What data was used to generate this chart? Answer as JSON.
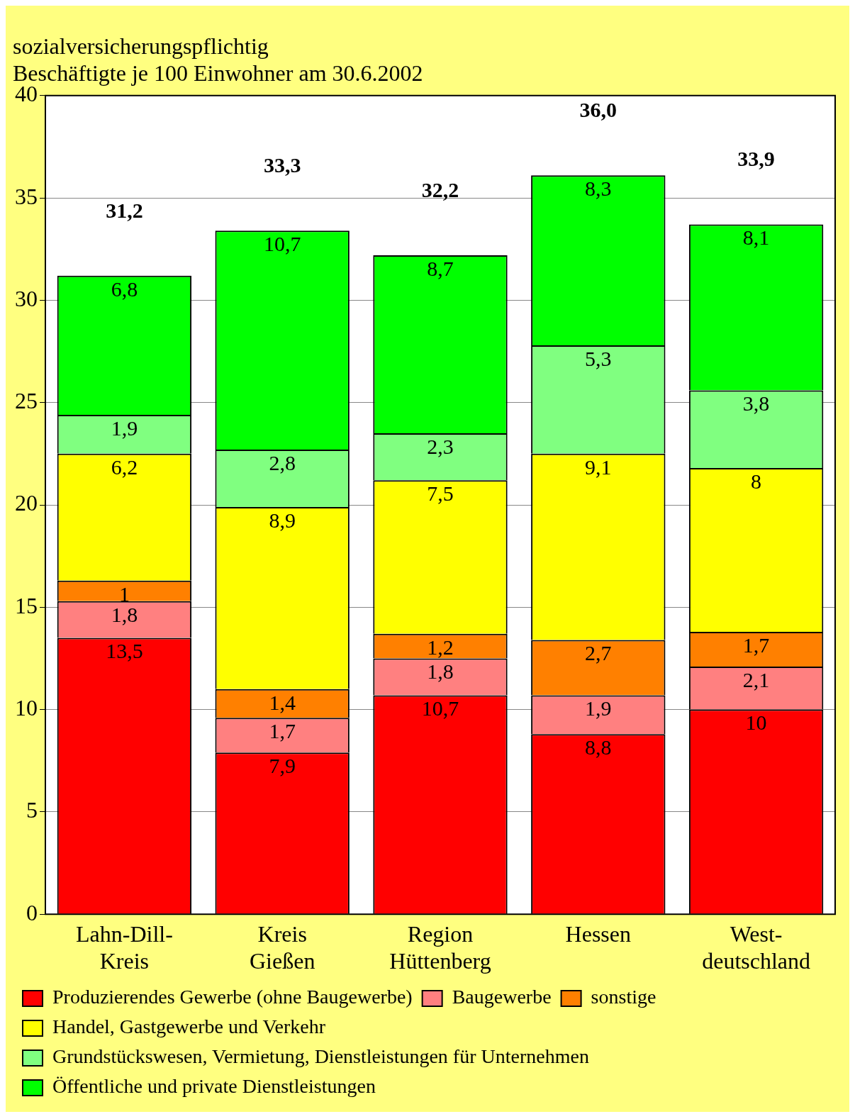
{
  "chart_data": {
    "type": "bar",
    "title": "sozialversicherungspflichtig",
    "subtitle": "Beschäftigte je 100 Einwohner am 30.6.2002",
    "categories": [
      "Lahn-Dill-Kreis",
      "Kreis Gießen",
      "Region Hüttenberg",
      "Hessen",
      "West-deutschland"
    ],
    "stacked": true,
    "series": [
      {
        "name": "Produzierendes Gewerbe (ohne Baugewerbe)",
        "color": "#ff0000",
        "values": [
          13.5,
          7.9,
          10.7,
          8.8,
          10
        ],
        "value_labels": [
          "13,5",
          "7,9",
          "10,7",
          "8,8",
          "10"
        ]
      },
      {
        "name": "Baugewerbe",
        "color": "#ff8080",
        "values": [
          1.8,
          1.7,
          1.8,
          1.9,
          2.1
        ],
        "value_labels": [
          "1,8",
          "1,7",
          "1,8",
          "1,9",
          "2,1"
        ]
      },
      {
        "name": "sonstige",
        "color": "#ff8000",
        "values": [
          1,
          1.4,
          1.2,
          2.7,
          1.7
        ],
        "value_labels": [
          "1",
          "1,4",
          "1,2",
          "2,7",
          "1,7"
        ]
      },
      {
        "name": "Handel, Gastgewerbe und Verkehr",
        "color": "#ffff00",
        "values": [
          6.2,
          8.9,
          7.5,
          9.1,
          8
        ],
        "value_labels": [
          "6,2",
          "8,9",
          "7,5",
          "9,1",
          "8"
        ]
      },
      {
        "name": "Grundstückswesen, Vermietung, Dienstleistungen für Unternehmen",
        "color": "#80ff80",
        "values": [
          1.9,
          2.8,
          2.3,
          5.3,
          3.8
        ],
        "value_labels": [
          "1,9",
          "2,8",
          "2,3",
          "5,3",
          "3,8"
        ]
      },
      {
        "name": "Öffentliche und private Dienstleistungen",
        "color": "#00ff00",
        "values": [
          6.8,
          10.7,
          8.7,
          8.3,
          8.1
        ],
        "value_labels": [
          "6,8",
          "10,7",
          "8,7",
          "8,3",
          "8,1"
        ]
      }
    ],
    "totals": [
      "31,2",
      "33,3",
      "32,2",
      "36,0",
      "33,9"
    ],
    "ylim": [
      0,
      40
    ],
    "yticks": [
      0,
      5,
      10,
      15,
      20,
      25,
      30,
      35,
      40
    ],
    "grid": "y",
    "legend": "bottom"
  }
}
